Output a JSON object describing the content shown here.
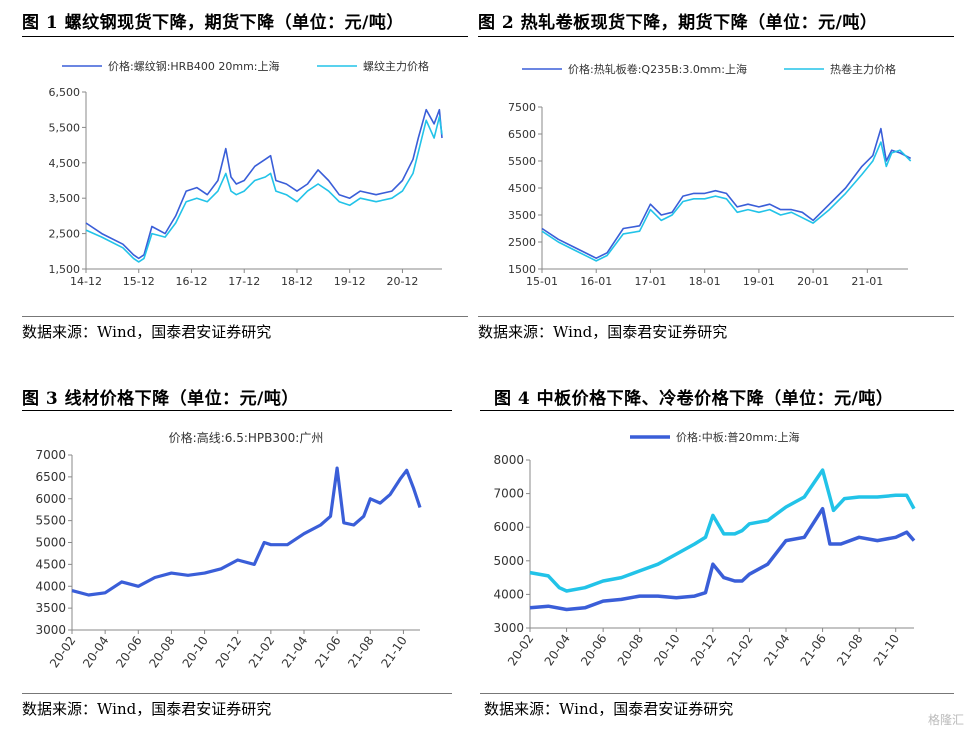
{
  "panels": [
    {
      "title": "图 1 螺纹钢现货下降，期货下降（单位：元/吨）",
      "source": "数据来源：Wind，国泰君安证券研究"
    },
    {
      "title": "图 2 热轧卷板现货下降，期货下降（单位：元/吨）",
      "source": "数据来源：Wind，国泰君安证券研究"
    },
    {
      "title": "图 3 线材价格下降（单位：元/吨）",
      "source": "数据来源：Wind，国泰君安证券研究"
    },
    {
      "title": "图 4 中板价格下降、冷卷价格下降（单位：元/吨）",
      "source": "数据来源：Wind，国泰君安证券研究"
    }
  ],
  "watermark": "格隆汇",
  "chart_data": [
    {
      "type": "line",
      "title": "图 1 螺纹钢现货下降，期货下降（单位：元/吨）",
      "x_ticks": [
        "14-12",
        "15-12",
        "16-12",
        "17-12",
        "18-12",
        "19-12",
        "20-12"
      ],
      "ylim": [
        1500,
        6500
      ],
      "y_ticks": [
        1500,
        2500,
        3500,
        4500,
        5500,
        6500
      ],
      "y_tick_labels": [
        "1,500",
        "2,500",
        "3,500",
        "4,500",
        "5,500",
        "6,500"
      ],
      "legend": "top",
      "series": [
        {
          "name": "价格:螺纹钢:HRB400 20mm:上海",
          "color": "#3a5ed8",
          "x": [
            0,
            0.3,
            0.7,
            0.9,
            1.0,
            1.1,
            1.25,
            1.5,
            1.7,
            1.9,
            2.1,
            2.3,
            2.5,
            2.65,
            2.75,
            2.85,
            3.0,
            3.2,
            3.4,
            3.5,
            3.6,
            3.8,
            4.0,
            4.2,
            4.4,
            4.6,
            4.8,
            5.0,
            5.2,
            5.5,
            5.8,
            6.0,
            6.2,
            6.3,
            6.45,
            6.6,
            6.7,
            6.75
          ],
          "y": [
            2800,
            2500,
            2200,
            1900,
            1800,
            1900,
            2700,
            2500,
            3000,
            3700,
            3800,
            3600,
            4000,
            4900,
            4100,
            3900,
            4000,
            4400,
            4600,
            4700,
            4000,
            3900,
            3700,
            3900,
            4300,
            4000,
            3600,
            3500,
            3700,
            3600,
            3700,
            4000,
            4600,
            5200,
            6000,
            5600,
            6000,
            5200
          ]
        },
        {
          "name": "螺纹主力价格",
          "color": "#22c3e8",
          "x": [
            0,
            0.3,
            0.7,
            0.9,
            1.0,
            1.1,
            1.25,
            1.5,
            1.7,
            1.9,
            2.1,
            2.3,
            2.5,
            2.65,
            2.75,
            2.85,
            3.0,
            3.2,
            3.4,
            3.5,
            3.6,
            3.8,
            4.0,
            4.2,
            4.4,
            4.6,
            4.8,
            5.0,
            5.2,
            5.5,
            5.8,
            6.0,
            6.2,
            6.3,
            6.45,
            6.6,
            6.7,
            6.75
          ],
          "y": [
            2600,
            2400,
            2100,
            1800,
            1700,
            1800,
            2500,
            2400,
            2800,
            3400,
            3500,
            3400,
            3700,
            4200,
            3700,
            3600,
            3700,
            4000,
            4100,
            4200,
            3700,
            3600,
            3400,
            3700,
            3900,
            3700,
            3400,
            3300,
            3500,
            3400,
            3500,
            3700,
            4200,
            4800,
            5700,
            5200,
            5800,
            5300
          ]
        }
      ]
    },
    {
      "type": "line",
      "title": "图 2 热轧卷板现货下降，期货下降（单位：元/吨）",
      "x_ticks": [
        "15-01",
        "16-01",
        "17-01",
        "18-01",
        "19-01",
        "20-01",
        "21-01"
      ],
      "ylim": [
        1500,
        7500
      ],
      "y_ticks": [
        1500,
        2500,
        3500,
        4500,
        5500,
        6500,
        7500
      ],
      "y_tick_labels": [
        "1500",
        "2500",
        "3500",
        "4500",
        "5500",
        "6500",
        "7500"
      ],
      "legend": "top",
      "series": [
        {
          "name": "价格:热轧板卷:Q235B:3.0mm:上海",
          "color": "#3a5ed8",
          "x": [
            0,
            0.3,
            0.6,
            0.9,
            1.0,
            1.2,
            1.5,
            1.8,
            2.0,
            2.2,
            2.4,
            2.6,
            2.8,
            3.0,
            3.2,
            3.4,
            3.6,
            3.8,
            4.0,
            4.2,
            4.4,
            4.6,
            4.8,
            5.0,
            5.3,
            5.6,
            5.9,
            6.1,
            6.25,
            6.35,
            6.45,
            6.6,
            6.8
          ],
          "y": [
            3000,
            2600,
            2300,
            2000,
            1900,
            2100,
            3000,
            3100,
            3900,
            3500,
            3600,
            4200,
            4300,
            4300,
            4400,
            4300,
            3800,
            3900,
            3800,
            3900,
            3700,
            3700,
            3600,
            3300,
            3900,
            4500,
            5300,
            5700,
            6700,
            5500,
            5900,
            5800,
            5600
          ]
        },
        {
          "name": "热卷主力价格",
          "color": "#22c3e8",
          "x": [
            0,
            0.3,
            0.6,
            0.9,
            1.0,
            1.2,
            1.5,
            1.8,
            2.0,
            2.2,
            2.4,
            2.6,
            2.8,
            3.0,
            3.2,
            3.4,
            3.6,
            3.8,
            4.0,
            4.2,
            4.4,
            4.6,
            4.8,
            5.0,
            5.3,
            5.6,
            5.9,
            6.1,
            6.25,
            6.35,
            6.45,
            6.6,
            6.8
          ],
          "y": [
            2900,
            2500,
            2200,
            1900,
            1800,
            2000,
            2800,
            2900,
            3700,
            3300,
            3500,
            4000,
            4100,
            4100,
            4200,
            4100,
            3600,
            3700,
            3600,
            3700,
            3500,
            3600,
            3400,
            3200,
            3700,
            4300,
            5000,
            5500,
            6200,
            5300,
            5800,
            5900,
            5500
          ]
        }
      ]
    },
    {
      "type": "line",
      "title": "图 3 线材价格下降（单位：元/吨）",
      "x_ticks": [
        "20-02",
        "20-04",
        "20-06",
        "20-08",
        "20-10",
        "20-12",
        "21-02",
        "21-04",
        "21-06",
        "21-08",
        "21-10"
      ],
      "ylim": [
        3000,
        7000
      ],
      "y_ticks": [
        3000,
        3500,
        4000,
        4500,
        5000,
        5500,
        6000,
        6500,
        7000
      ],
      "y_tick_labels": [
        "3000",
        "3500",
        "4000",
        "4500",
        "5000",
        "5500",
        "6000",
        "6500",
        "7000"
      ],
      "legend": "top",
      "series": [
        {
          "name": "价格:高线:6.5:HPB300:广州",
          "color": "#3a5ed8",
          "x": [
            0,
            0.5,
            1.0,
            1.5,
            2.0,
            2.5,
            3.0,
            3.5,
            4.0,
            4.5,
            5.0,
            5.5,
            5.8,
            6.0,
            6.5,
            7.0,
            7.5,
            7.8,
            8.0,
            8.2,
            8.5,
            8.8,
            9.0,
            9.3,
            9.6,
            9.9,
            10.1,
            10.3,
            10.5
          ],
          "y": [
            3900,
            3800,
            3850,
            4100,
            4000,
            4200,
            4300,
            4250,
            4300,
            4400,
            4600,
            4500,
            5000,
            4950,
            4950,
            5200,
            5400,
            5600,
            6700,
            5450,
            5400,
            5600,
            6000,
            5900,
            6100,
            6450,
            6650,
            6250,
            5800
          ]
        }
      ]
    },
    {
      "type": "line",
      "title": "图 4 中板价格下降、冷卷价格下降（单位：元/吨）",
      "x_ticks": [
        "20-02",
        "20-04",
        "20-06",
        "20-08",
        "20-10",
        "20-12",
        "21-02",
        "21-04",
        "21-06",
        "21-08",
        "21-10"
      ],
      "ylim": [
        3000,
        8000
      ],
      "y_ticks": [
        3000,
        4000,
        5000,
        6000,
        7000,
        8000
      ],
      "y_tick_labels": [
        "3000",
        "4000",
        "5000",
        "6000",
        "7000",
        "8000"
      ],
      "legend": "top",
      "series": [
        {
          "name": "价格:中板:普20mm:上海",
          "color": "#3a5ed8",
          "x": [
            0,
            0.5,
            1.0,
            1.5,
            2.0,
            2.5,
            3.0,
            3.5,
            4.0,
            4.5,
            4.8,
            5.0,
            5.3,
            5.6,
            5.8,
            6.0,
            6.5,
            7.0,
            7.5,
            8.0,
            8.2,
            8.5,
            9.0,
            9.5,
            10.0,
            10.3,
            10.5
          ],
          "y": [
            3600,
            3650,
            3550,
            3600,
            3800,
            3850,
            3950,
            3950,
            3900,
            3950,
            4050,
            4900,
            4500,
            4400,
            4400,
            4600,
            4900,
            5600,
            5700,
            6550,
            5500,
            5500,
            5700,
            5600,
            5700,
            5850,
            5600
          ]
        },
        {
          "name": "冷卷价格",
          "color": "#22c3e8",
          "x": [
            0,
            0.5,
            0.8,
            1.0,
            1.5,
            2.0,
            2.5,
            3.0,
            3.5,
            4.0,
            4.5,
            4.8,
            5.0,
            5.3,
            5.6,
            5.8,
            6.0,
            6.5,
            7.0,
            7.5,
            8.0,
            8.3,
            8.6,
            9.0,
            9.5,
            10.0,
            10.3,
            10.5
          ],
          "y": [
            4650,
            4550,
            4200,
            4100,
            4200,
            4400,
            4500,
            4700,
            4900,
            5200,
            5500,
            5700,
            6350,
            5800,
            5800,
            5900,
            6100,
            6200,
            6600,
            6900,
            7700,
            6500,
            6850,
            6900,
            6900,
            6950,
            6950,
            6550
          ]
        }
      ]
    }
  ]
}
